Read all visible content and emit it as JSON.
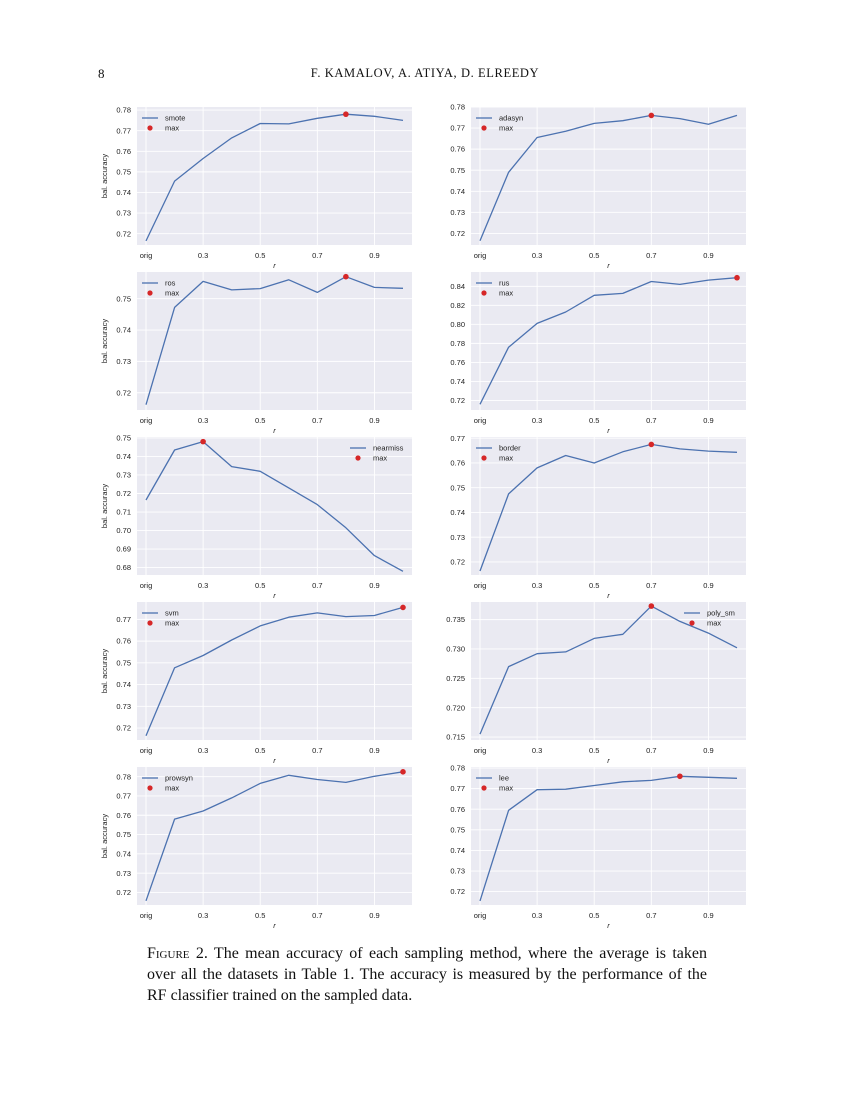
{
  "page": {
    "page_number": "8",
    "running_head": "F. KAMALOV, A. ATIYA, D. ELREEDY"
  },
  "figure": {
    "caption_label": "Figure 2.",
    "caption_text": "The mean accuracy of each sampling method, where the average is taken over all the datasets in Table 1. The accuracy is measured by the performance of the RF classifier trained on the sampled data.",
    "colors": {
      "line": "#4c72b0",
      "marker": "#d62728",
      "panel_bg": "#eaeaf2",
      "grid": "#ffffff"
    }
  },
  "chart_data": [
    {
      "type": "line",
      "title": "",
      "categories": [
        "orig",
        "0.2",
        "0.3",
        "0.4",
        "0.5",
        "0.6",
        "0.7",
        "0.8",
        "0.9",
        "1.0"
      ],
      "xtick_labels": [
        "orig",
        "0.3",
        "0.5",
        "0.7",
        "0.9"
      ],
      "xlabel": "r",
      "ylabel": "bal. accuracy",
      "series": [
        {
          "name": "smote",
          "values": [
            0.7165,
            0.7455,
            0.7565,
            0.7665,
            0.7735,
            0.7733,
            0.776,
            0.778,
            0.777,
            0.775
          ]
        }
      ],
      "max_marker": {
        "name": "max",
        "category": "0.8",
        "value": 0.778
      },
      "yticks": [
        0.72,
        0.73,
        0.74,
        0.75,
        0.76,
        0.77,
        0.78
      ],
      "ytick_labels": [
        "0.72",
        "0.73",
        "0.74",
        "0.75",
        "0.76",
        "0.77",
        "0.78"
      ],
      "ylim": [
        0.7145,
        0.7815
      ],
      "legend": "top-left",
      "grid": true
    },
    {
      "type": "line",
      "title": "",
      "categories": [
        "orig",
        "0.2",
        "0.3",
        "0.4",
        "0.5",
        "0.6",
        "0.7",
        "0.8",
        "0.9",
        "1.0"
      ],
      "xtick_labels": [
        "orig",
        "0.3",
        "0.5",
        "0.7",
        "0.9"
      ],
      "xlabel": "r",
      "ylabel": "",
      "series": [
        {
          "name": "adasyn",
          "values": [
            0.7165,
            0.749,
            0.7655,
            0.7685,
            0.7722,
            0.7735,
            0.776,
            0.7745,
            0.7718,
            0.776
          ]
        }
      ],
      "max_marker": {
        "name": "max",
        "category": "0.7",
        "value": 0.776
      },
      "yticks": [
        0.72,
        0.73,
        0.74,
        0.75,
        0.76,
        0.77,
        0.78
      ],
      "ytick_labels": [
        "0.72",
        "0.73",
        "0.74",
        "0.75",
        "0.76",
        "0.77",
        "0.78"
      ],
      "ylim": [
        0.7145,
        0.78
      ],
      "legend": "top-left",
      "grid": true
    },
    {
      "type": "line",
      "title": "",
      "categories": [
        "orig",
        "0.2",
        "0.3",
        "0.4",
        "0.5",
        "0.6",
        "0.7",
        "0.8",
        "0.9",
        "1.0"
      ],
      "xtick_labels": [
        "orig",
        "0.3",
        "0.5",
        "0.7",
        "0.9"
      ],
      "xlabel": "r",
      "ylabel": "bal. accuracy",
      "series": [
        {
          "name": "ros",
          "values": [
            0.7162,
            0.7472,
            0.7555,
            0.7528,
            0.7532,
            0.756,
            0.752,
            0.757,
            0.7536,
            0.7533
          ]
        }
      ],
      "max_marker": {
        "name": "max",
        "category": "0.8",
        "value": 0.757
      },
      "yticks": [
        0.72,
        0.73,
        0.74,
        0.75
      ],
      "ytick_labels": [
        "0.72",
        "0.73",
        "0.74",
        "0.75"
      ],
      "ylim": [
        0.7145,
        0.7585
      ],
      "legend": "top-left",
      "grid": true
    },
    {
      "type": "line",
      "title": "",
      "categories": [
        "orig",
        "0.2",
        "0.3",
        "0.4",
        "0.5",
        "0.6",
        "0.7",
        "0.8",
        "0.9",
        "1.0"
      ],
      "xtick_labels": [
        "orig",
        "0.3",
        "0.5",
        "0.7",
        "0.9"
      ],
      "xlabel": "r",
      "ylabel": "",
      "series": [
        {
          "name": "rus",
          "values": [
            0.716,
            0.776,
            0.801,
            0.813,
            0.8305,
            0.8325,
            0.845,
            0.842,
            0.8465,
            0.849
          ]
        }
      ],
      "max_marker": {
        "name": "max",
        "category": "1.0",
        "value": 0.849
      },
      "yticks": [
        0.72,
        0.74,
        0.76,
        0.78,
        0.8,
        0.82,
        0.84
      ],
      "ytick_labels": [
        "0.72",
        "0.74",
        "0.76",
        "0.78",
        "0.80",
        "0.82",
        "0.84"
      ],
      "ylim": [
        0.71,
        0.855
      ],
      "legend": "top-left",
      "grid": true
    },
    {
      "type": "line",
      "title": "",
      "categories": [
        "orig",
        "0.2",
        "0.3",
        "0.4",
        "0.5",
        "0.6",
        "0.7",
        "0.8",
        "0.9",
        "1.0"
      ],
      "xtick_labels": [
        "orig",
        "0.3",
        "0.5",
        "0.7",
        "0.9"
      ],
      "xlabel": "r",
      "ylabel": "bal. accuracy",
      "series": [
        {
          "name": "nearmiss",
          "values": [
            0.7165,
            0.7435,
            0.748,
            0.7345,
            0.732,
            0.723,
            0.714,
            0.7015,
            0.6865,
            0.678
          ]
        }
      ],
      "max_marker": {
        "name": "max",
        "category": "0.3",
        "value": 0.748
      },
      "yticks": [
        0.68,
        0.69,
        0.7,
        0.71,
        0.72,
        0.73,
        0.74,
        0.75
      ],
      "ytick_labels": [
        "0.68",
        "0.69",
        "0.70",
        "0.71",
        "0.72",
        "0.73",
        "0.74",
        "0.75"
      ],
      "ylim": [
        0.676,
        0.7505
      ],
      "legend": "top-right",
      "grid": true
    },
    {
      "type": "line",
      "title": "",
      "categories": [
        "orig",
        "0.2",
        "0.3",
        "0.4",
        "0.5",
        "0.6",
        "0.7",
        "0.8",
        "0.9",
        "1.0"
      ],
      "xtick_labels": [
        "orig",
        "0.3",
        "0.5",
        "0.7",
        "0.9"
      ],
      "xlabel": "r",
      "ylabel": "",
      "series": [
        {
          "name": "border",
          "values": [
            0.7163,
            0.7475,
            0.758,
            0.763,
            0.76,
            0.7645,
            0.7675,
            0.7657,
            0.7648,
            0.7643
          ]
        }
      ],
      "max_marker": {
        "name": "max",
        "category": "0.7",
        "value": 0.7675
      },
      "yticks": [
        0.72,
        0.73,
        0.74,
        0.75,
        0.76,
        0.77
      ],
      "ytick_labels": [
        "0.72",
        "0.73",
        "0.74",
        "0.75",
        "0.76",
        "0.77"
      ],
      "ylim": [
        0.7147,
        0.7705
      ],
      "legend": "top-left",
      "grid": true
    },
    {
      "type": "line",
      "title": "",
      "categories": [
        "orig",
        "0.2",
        "0.3",
        "0.4",
        "0.5",
        "0.6",
        "0.7",
        "0.8",
        "0.9",
        "1.0"
      ],
      "xtick_labels": [
        "orig",
        "0.3",
        "0.5",
        "0.7",
        "0.9"
      ],
      "xlabel": "r",
      "ylabel": "bal. accuracy",
      "series": [
        {
          "name": "svm",
          "values": [
            0.7165,
            0.7477,
            0.7534,
            0.7605,
            0.767,
            0.771,
            0.773,
            0.7713,
            0.7718,
            0.7755
          ]
        }
      ],
      "max_marker": {
        "name": "max",
        "category": "1.0",
        "value": 0.7755
      },
      "yticks": [
        0.72,
        0.73,
        0.74,
        0.75,
        0.76,
        0.77
      ],
      "ytick_labels": [
        "0.72",
        "0.73",
        "0.74",
        "0.75",
        "0.76",
        "0.77"
      ],
      "ylim": [
        0.7145,
        0.778
      ],
      "legend": "top-left",
      "grid": true
    },
    {
      "type": "line",
      "title": "",
      "categories": [
        "orig",
        "0.2",
        "0.3",
        "0.4",
        "0.5",
        "0.6",
        "0.7",
        "0.8",
        "0.9",
        "1.0"
      ],
      "xtick_labels": [
        "orig",
        "0.3",
        "0.5",
        "0.7",
        "0.9"
      ],
      "xlabel": "r",
      "ylabel": "",
      "series": [
        {
          "name": "poly_sm",
          "values": [
            0.7155,
            0.727,
            0.7292,
            0.7295,
            0.7318,
            0.7325,
            0.7373,
            0.7347,
            0.7327,
            0.7302
          ]
        }
      ],
      "max_marker": {
        "name": "max",
        "category": "0.7",
        "value": 0.7373
      },
      "yticks": [
        0.715,
        0.72,
        0.725,
        0.73,
        0.735
      ],
      "ytick_labels": [
        "0.715",
        "0.720",
        "0.725",
        "0.730",
        "0.735"
      ],
      "ylim": [
        0.7145,
        0.738
      ],
      "legend": "top-right",
      "grid": true
    },
    {
      "type": "line",
      "title": "",
      "categories": [
        "orig",
        "0.2",
        "0.3",
        "0.4",
        "0.5",
        "0.6",
        "0.7",
        "0.8",
        "0.9",
        "1.0"
      ],
      "xtick_labels": [
        "orig",
        "0.3",
        "0.5",
        "0.7",
        "0.9"
      ],
      "xlabel": "r",
      "ylabel": "bal. accuracy",
      "series": [
        {
          "name": "prowsyn",
          "values": [
            0.7157,
            0.758,
            0.7622,
            0.769,
            0.7765,
            0.7807,
            0.7785,
            0.777,
            0.7802,
            0.7825
          ]
        }
      ],
      "max_marker": {
        "name": "max",
        "category": "1.0",
        "value": 0.7825
      },
      "yticks": [
        0.72,
        0.73,
        0.74,
        0.75,
        0.76,
        0.77,
        0.78
      ],
      "ytick_labels": [
        "0.72",
        "0.73",
        "0.74",
        "0.75",
        "0.76",
        "0.77",
        "0.78"
      ],
      "ylim": [
        0.7135,
        0.785
      ],
      "legend": "top-left",
      "grid": true
    },
    {
      "type": "line",
      "title": "",
      "categories": [
        "orig",
        "0.2",
        "0.3",
        "0.4",
        "0.5",
        "0.6",
        "0.7",
        "0.8",
        "0.9",
        "1.0"
      ],
      "xtick_labels": [
        "orig",
        "0.3",
        "0.5",
        "0.7",
        "0.9"
      ],
      "xlabel": "r",
      "ylabel": "",
      "series": [
        {
          "name": "lee",
          "values": [
            0.7155,
            0.7595,
            0.7695,
            0.7697,
            0.7715,
            0.7733,
            0.774,
            0.776,
            0.7755,
            0.775
          ]
        }
      ],
      "max_marker": {
        "name": "max",
        "category": "0.8",
        "value": 0.776
      },
      "yticks": [
        0.72,
        0.73,
        0.74,
        0.75,
        0.76,
        0.77,
        0.78
      ],
      "ytick_labels": [
        "0.72",
        "0.73",
        "0.74",
        "0.75",
        "0.76",
        "0.77",
        "0.78"
      ],
      "ylim": [
        0.7135,
        0.7805
      ],
      "legend": "top-left",
      "grid": true
    }
  ]
}
